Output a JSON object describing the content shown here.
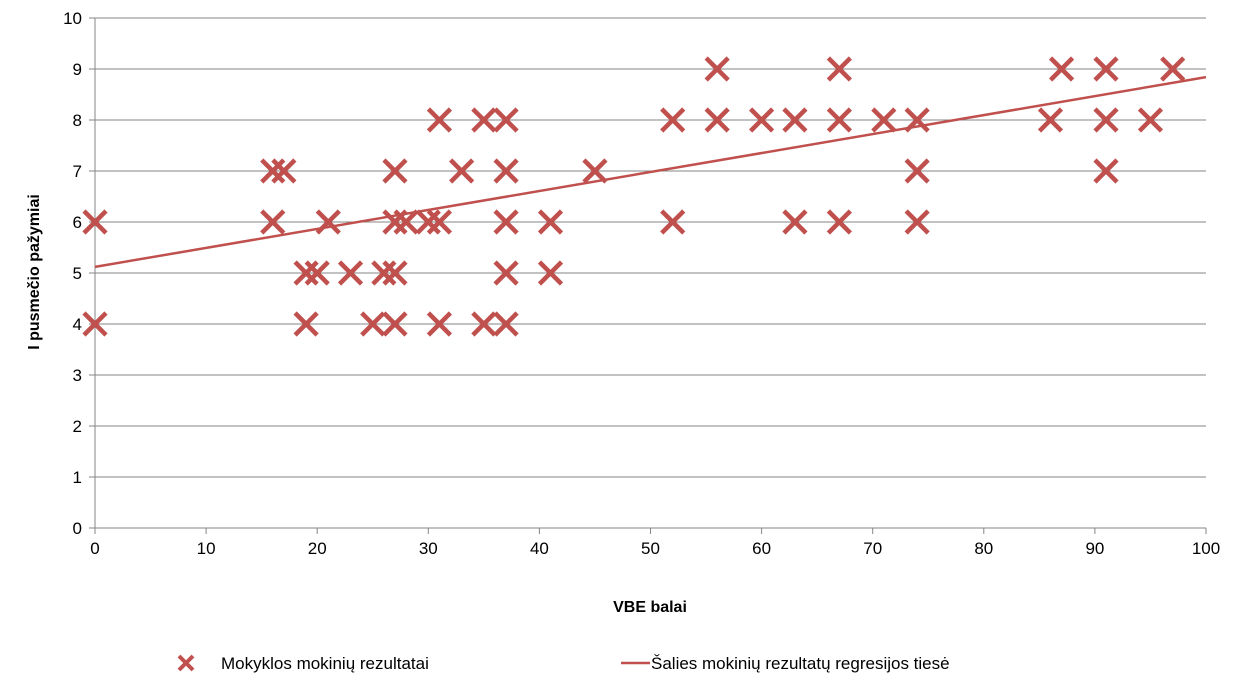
{
  "chart_data": {
    "type": "scatter",
    "xlabel": "VBE balai",
    "ylabel": "I pusmečio pažymiai",
    "xlim": [
      0,
      100
    ],
    "ylim": [
      0,
      10
    ],
    "xticks": [
      0,
      10,
      20,
      30,
      40,
      50,
      60,
      70,
      80,
      90,
      100
    ],
    "yticks": [
      0,
      1,
      2,
      3,
      4,
      5,
      6,
      7,
      8,
      9,
      10
    ],
    "grid": "horizontal",
    "legend": "bottom",
    "series": [
      {
        "name": "Mokyklos mokinių rezultatai",
        "type": "scatter",
        "marker": "x",
        "color": "#C0504D",
        "points": [
          [
            0,
            6
          ],
          [
            0,
            4
          ],
          [
            16,
            7
          ],
          [
            17,
            7
          ],
          [
            16,
            6
          ],
          [
            19,
            5
          ],
          [
            19,
            4
          ],
          [
            20,
            5
          ],
          [
            21,
            6
          ],
          [
            23,
            5
          ],
          [
            25,
            4
          ],
          [
            26,
            5
          ],
          [
            27,
            5
          ],
          [
            27,
            7
          ],
          [
            27,
            6
          ],
          [
            27,
            4
          ],
          [
            28,
            6
          ],
          [
            30,
            6
          ],
          [
            31,
            6
          ],
          [
            31,
            8
          ],
          [
            31,
            4
          ],
          [
            33,
            7
          ],
          [
            35,
            8
          ],
          [
            35,
            4
          ],
          [
            37,
            8
          ],
          [
            37,
            7
          ],
          [
            37,
            6
          ],
          [
            37,
            5
          ],
          [
            37,
            4
          ],
          [
            41,
            6
          ],
          [
            41,
            5
          ],
          [
            45,
            7
          ],
          [
            52,
            8
          ],
          [
            52,
            6
          ],
          [
            56,
            9
          ],
          [
            56,
            8
          ],
          [
            60,
            8
          ],
          [
            63,
            8
          ],
          [
            63,
            6
          ],
          [
            67,
            9
          ],
          [
            67,
            8
          ],
          [
            67,
            6
          ],
          [
            71,
            8
          ],
          [
            74,
            8
          ],
          [
            74,
            7
          ],
          [
            74,
            6
          ],
          [
            86,
            8
          ],
          [
            87,
            9
          ],
          [
            91,
            9
          ],
          [
            91,
            8
          ],
          [
            91,
            7
          ],
          [
            95,
            8
          ],
          [
            97,
            9
          ]
        ]
      },
      {
        "name": "Šalies mokinių rezultatų regresijos tiesė",
        "type": "line",
        "color": "#C0504D",
        "points": [
          [
            0,
            5.12
          ],
          [
            100,
            8.84
          ]
        ]
      }
    ]
  }
}
